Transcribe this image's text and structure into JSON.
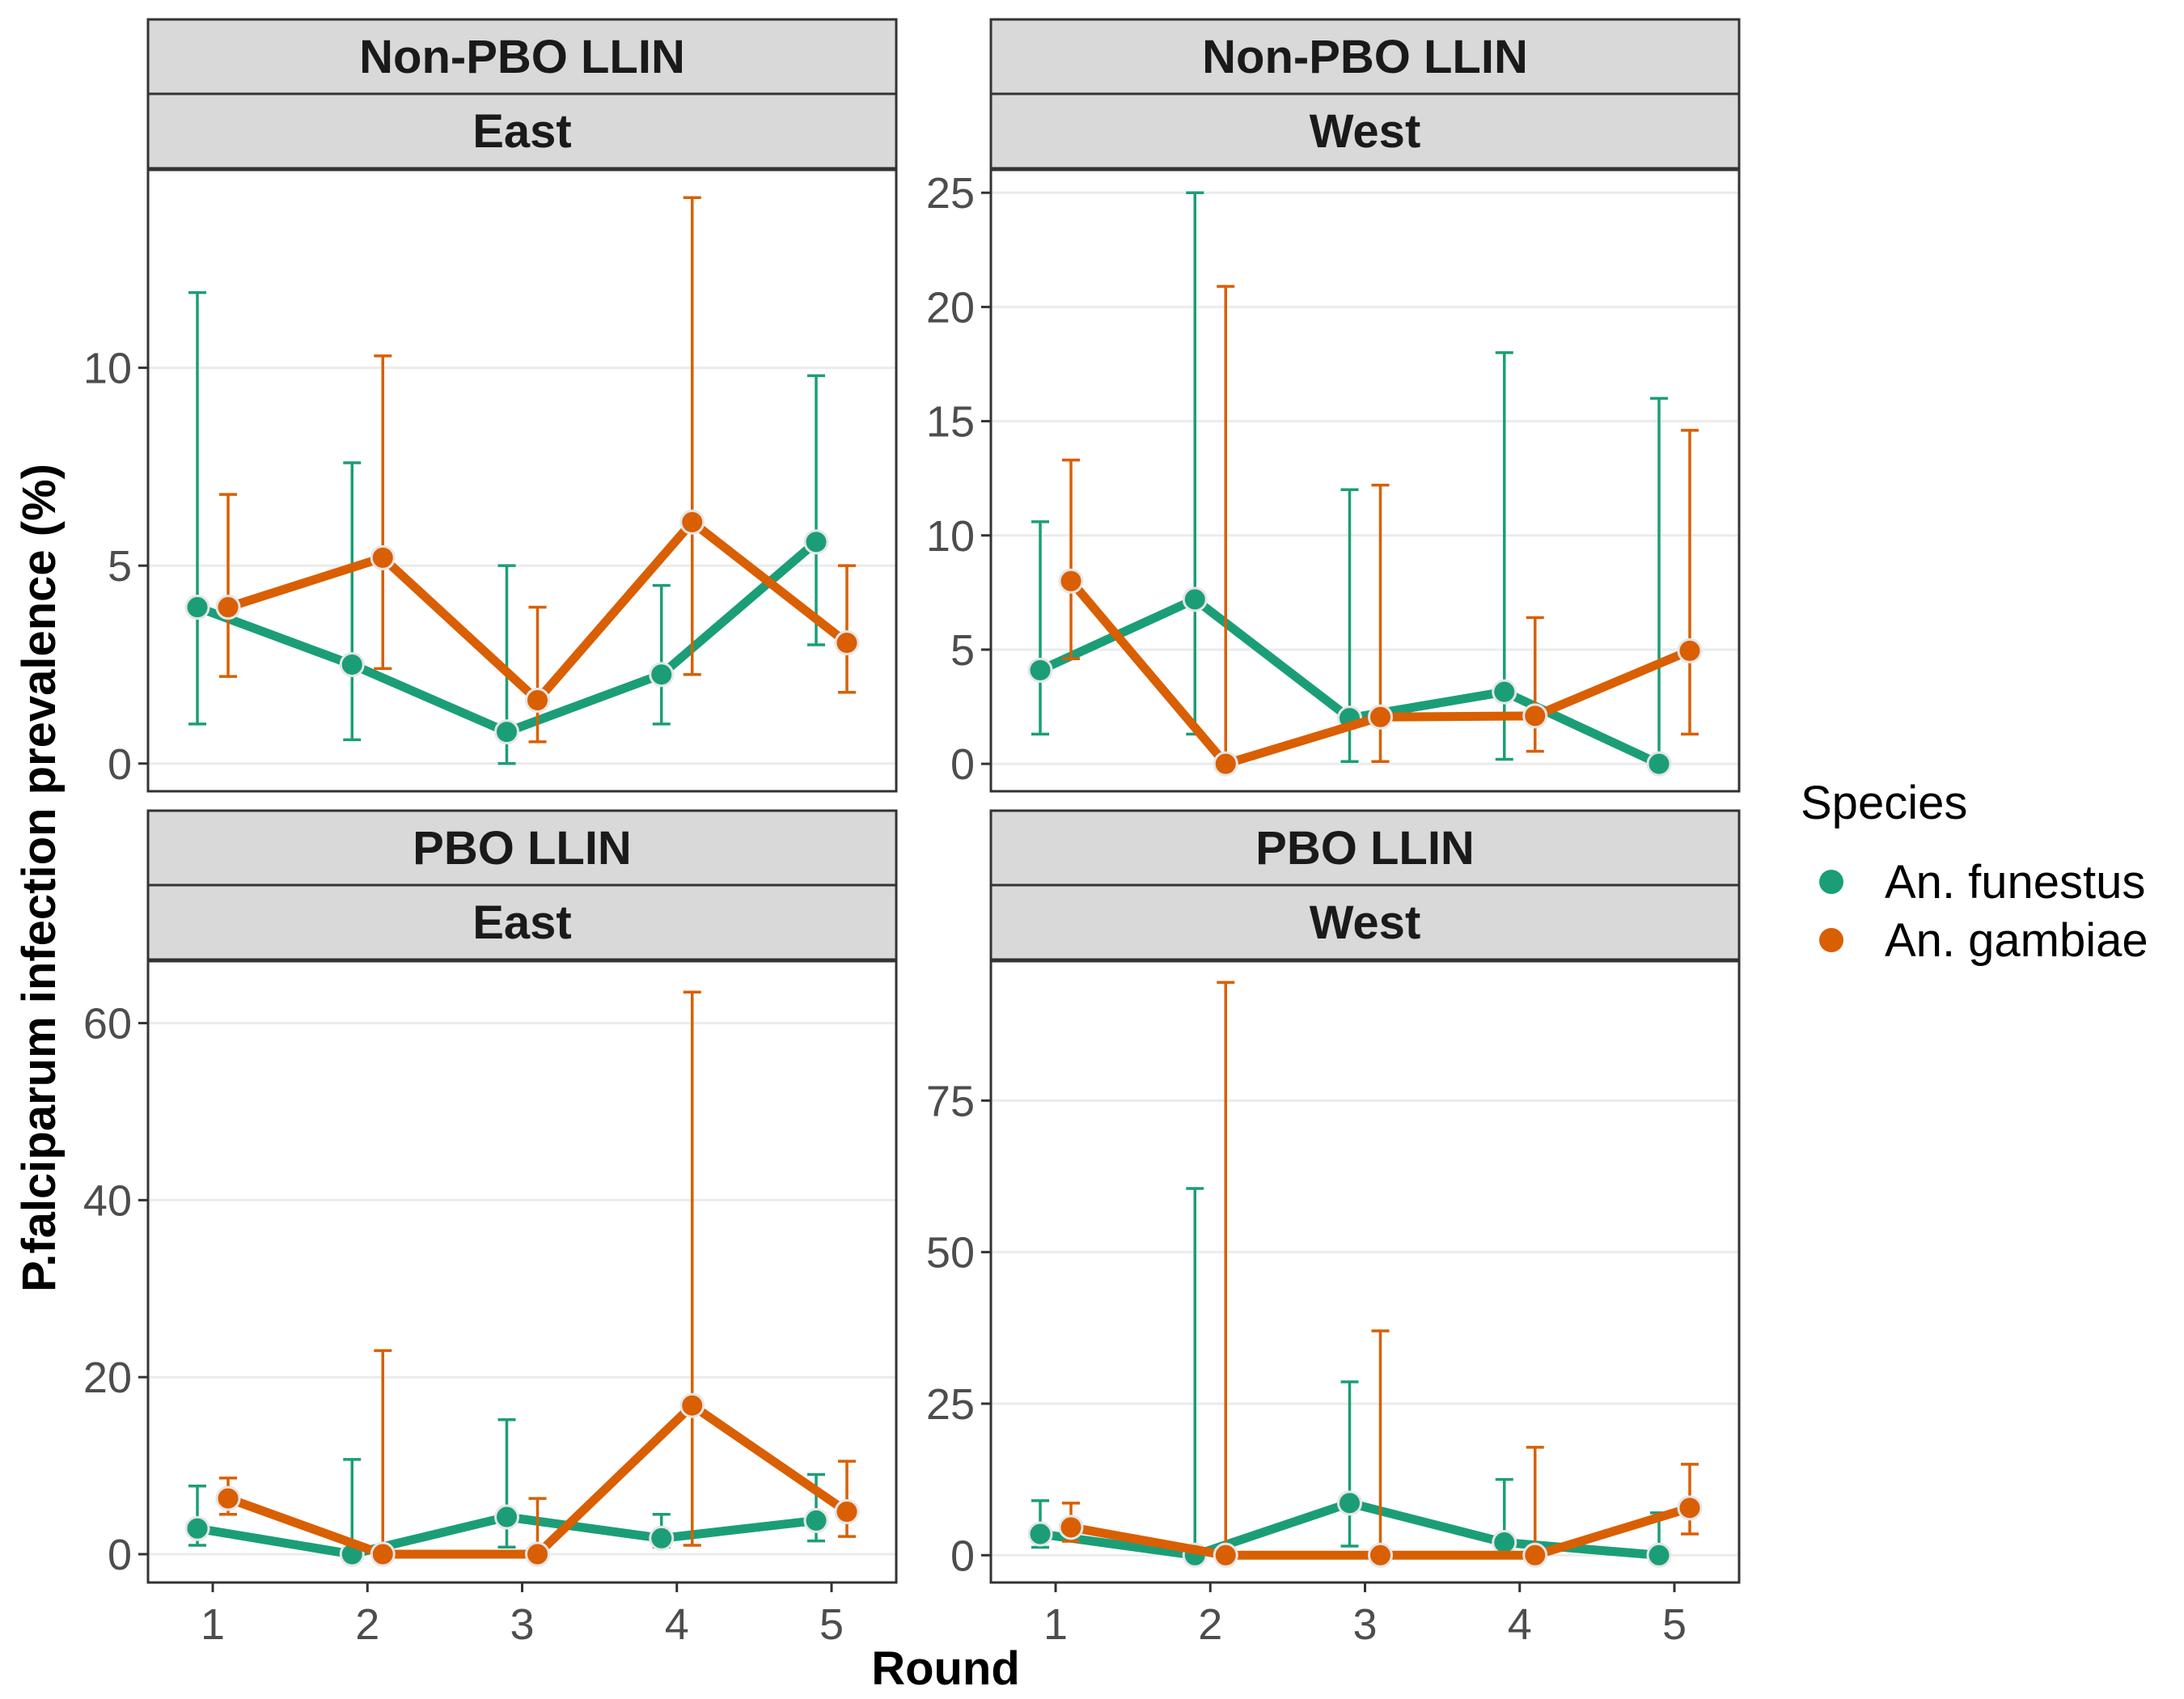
{
  "chart_data": {
    "type": "line",
    "facet_strips": {
      "row_labels": [
        "Non-PBO LLIN",
        "PBO LLIN"
      ],
      "col_labels": [
        "East",
        "West"
      ]
    },
    "xlabel": "Round",
    "ylabel": "P.falciparum infection prevalence (%)",
    "x": [
      1,
      2,
      3,
      4,
      5
    ],
    "legend": {
      "title": "Species",
      "position": "right",
      "entries": [
        {
          "name": "An. funestus",
          "color": "#1b9e77"
        },
        {
          "name": "An. gambiae",
          "color": "#d95f02"
        }
      ]
    },
    "grid": true,
    "panels": [
      {
        "strip_top": "Non-PBO LLIN",
        "strip_bottom": "East",
        "ylim": [
          -0.7,
          15
        ],
        "yticks": [
          0,
          5,
          10
        ],
        "series": [
          {
            "name": "An. funestus",
            "color": "#1b9e77",
            "values": [
              3.95,
              2.5,
              0.8,
              2.25,
              5.6
            ],
            "lower": [
              1.0,
              0.6,
              0.0,
              1.0,
              3.0
            ],
            "upper": [
              11.9,
              7.6,
              5.0,
              4.5,
              9.8
            ]
          },
          {
            "name": "An. gambiae",
            "color": "#d95f02",
            "values": [
              3.95,
              5.2,
              1.6,
              6.1,
              3.05
            ],
            "lower": [
              2.2,
              2.4,
              0.55,
              2.25,
              1.8
            ],
            "upper": [
              6.8,
              10.3,
              3.95,
              14.3,
              5.0
            ]
          }
        ]
      },
      {
        "strip_top": "Non-PBO LLIN",
        "strip_bottom": "West",
        "ylim": [
          -1.2,
          26
        ],
        "yticks": [
          0,
          5,
          10,
          15,
          20,
          25
        ],
        "series": [
          {
            "name": "An. funestus",
            "color": "#1b9e77",
            "values": [
              4.1,
              7.2,
              2.0,
              3.15,
              0.0
            ],
            "lower": [
              1.3,
              1.3,
              0.1,
              0.2,
              0.0
            ],
            "upper": [
              10.6,
              25.0,
              12.0,
              18.0,
              16.0
            ]
          },
          {
            "name": "An. gambiae",
            "color": "#d95f02",
            "values": [
              8.0,
              0.0,
              2.05,
              2.1,
              4.95
            ],
            "lower": [
              4.6,
              0.0,
              0.1,
              0.55,
              1.3
            ],
            "upper": [
              13.3,
              20.9,
              12.2,
              6.4,
              14.6
            ]
          }
        ]
      },
      {
        "strip_top": "PBO LLIN",
        "strip_bottom": "East",
        "ylim": [
          -3.2,
          67
        ],
        "yticks": [
          0,
          20,
          40,
          60
        ],
        "series": [
          {
            "name": "An. funestus",
            "color": "#1b9e77",
            "values": [
              2.9,
              0.0,
              4.2,
              1.8,
              3.8
            ],
            "lower": [
              1.0,
              0.0,
              0.8,
              0.8,
              1.5
            ],
            "upper": [
              7.7,
              10.7,
              15.2,
              4.5,
              9.0
            ]
          },
          {
            "name": "An. gambiae",
            "color": "#d95f02",
            "values": [
              6.3,
              0.0,
              0.0,
              16.8,
              4.8
            ],
            "lower": [
              4.5,
              0.0,
              0.0,
              1.0,
              2.0
            ],
            "upper": [
              8.6,
              23.0,
              6.3,
              63.5,
              10.5
            ]
          }
        ]
      },
      {
        "strip_top": "PBO LLIN",
        "strip_bottom": "West",
        "ylim": [
          -4.5,
          98
        ],
        "yticks": [
          0,
          25,
          50,
          75
        ],
        "series": [
          {
            "name": "An. funestus",
            "color": "#1b9e77",
            "values": [
              3.5,
              0.0,
              8.6,
              2.1,
              0.0
            ],
            "lower": [
              1.3,
              0.0,
              1.5,
              0.2,
              0.0
            ],
            "upper": [
              9.0,
              60.5,
              28.6,
              12.5,
              7.0
            ]
          },
          {
            "name": "An. gambiae",
            "color": "#d95f02",
            "values": [
              4.6,
              0.0,
              0.0,
              0.0,
              7.8
            ],
            "lower": [
              2.3,
              0.0,
              0.0,
              0.0,
              3.5
            ],
            "upper": [
              8.6,
              94.5,
              37.0,
              17.8,
              15.0
            ]
          }
        ]
      }
    ]
  }
}
